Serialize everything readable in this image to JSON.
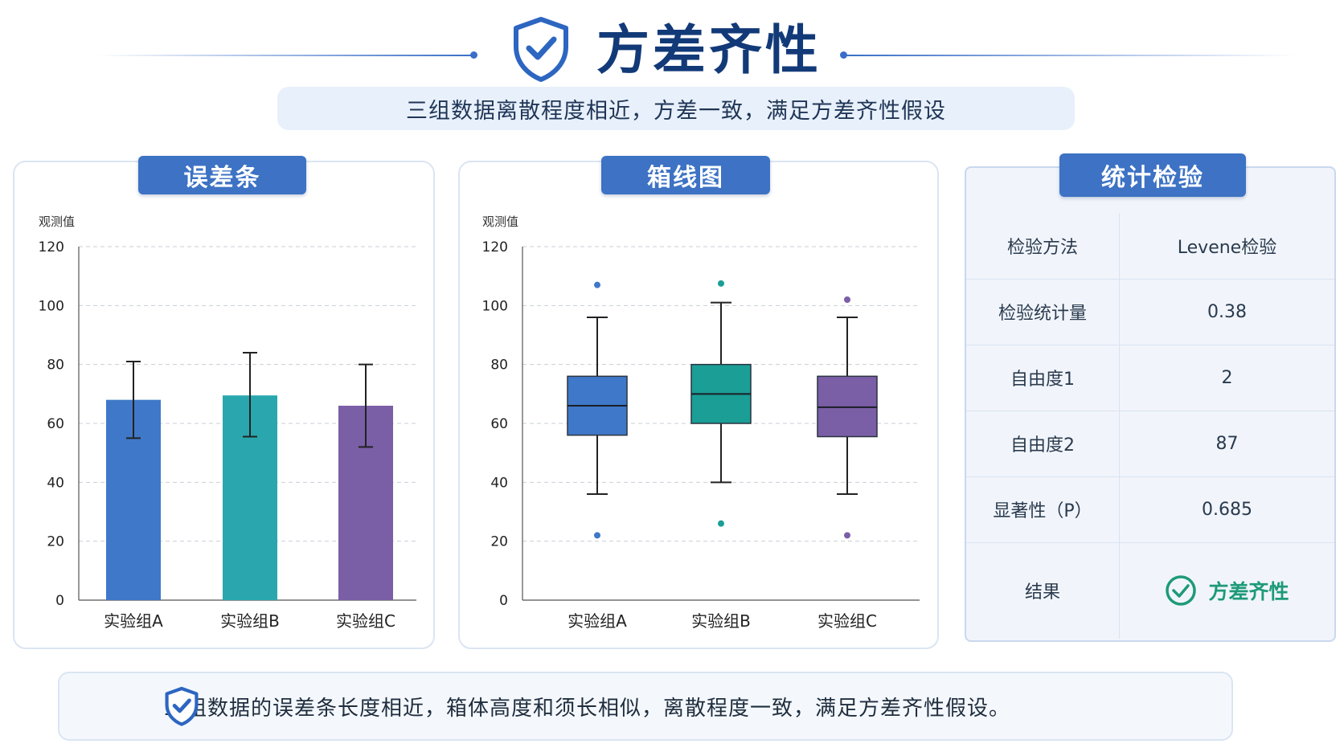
{
  "header": {
    "title": "方差齐性",
    "subtitle": "三组数据离散程度相近，方差一致，满足方差齐性假设"
  },
  "colors": {
    "group_a": "#3f78c8",
    "group_b": "#2aa7ae",
    "group_c": "#7a5ea6",
    "box_b": "#1a9e96",
    "accent": "#3d72c4",
    "success": "#1e9a78"
  },
  "panels": {
    "errorbar_title": "误差条",
    "boxplot_title": "箱线图",
    "stats_title": "统计检验"
  },
  "chart_data": [
    {
      "type": "bar",
      "title": "误差条",
      "ylabel": "观测值",
      "xlabel": "",
      "ylim": [
        0,
        120
      ],
      "yticks": [
        0,
        20,
        40,
        60,
        80,
        100,
        120
      ],
      "grid": true,
      "categories": [
        "实验组A",
        "实验组B",
        "实验组C"
      ],
      "values": [
        68,
        69.5,
        66
      ],
      "error_low": [
        55,
        55.5,
        52
      ],
      "error_high": [
        81,
        84,
        80
      ]
    },
    {
      "type": "boxplot",
      "title": "箱线图",
      "ylabel": "观测值",
      "xlabel": "",
      "ylim": [
        0,
        120
      ],
      "yticks": [
        0,
        20,
        40,
        60,
        80,
        100,
        120
      ],
      "grid": true,
      "categories": [
        "实验组A",
        "实验组B",
        "实验组C"
      ],
      "boxes": [
        {
          "whisker_low": 36,
          "q1": 56,
          "median": 66,
          "q3": 76,
          "whisker_high": 96,
          "outliers": [
            22,
            107
          ]
        },
        {
          "whisker_low": 40,
          "q1": 60,
          "median": 70,
          "q3": 80,
          "whisker_high": 101,
          "outliers": [
            26,
            107.5
          ]
        },
        {
          "whisker_low": 36,
          "q1": 55.5,
          "median": 65.5,
          "q3": 76,
          "whisker_high": 96,
          "outliers": [
            22,
            102
          ]
        }
      ]
    }
  ],
  "stats_table": {
    "rows": [
      {
        "key": "检验方法",
        "value": "Levene检验"
      },
      {
        "key": "检验统计量",
        "value": "0.38"
      },
      {
        "key": "自由度1",
        "value": "2"
      },
      {
        "key": "自由度2",
        "value": "87"
      },
      {
        "key": "显著性（P）",
        "value": "0.685"
      },
      {
        "key": "结果",
        "value": "方差齐性",
        "icon": "check-circle-icon"
      }
    ]
  },
  "footer": {
    "text": "三组数据的误差条长度相近，箱体高度和须长相似，离散程度一致，满足方差齐性假设。",
    "icon": "shield-check-icon"
  }
}
